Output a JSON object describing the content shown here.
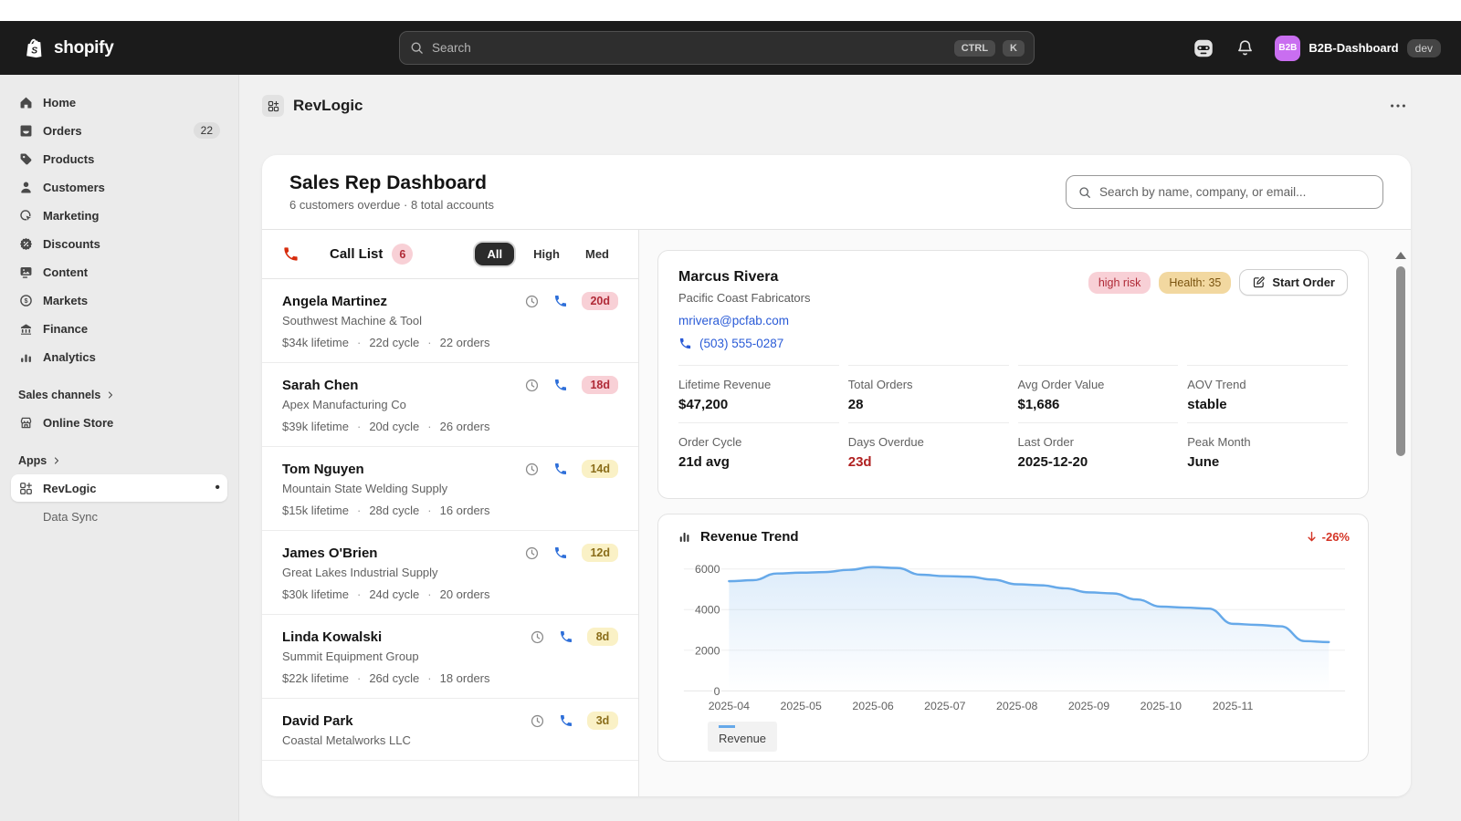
{
  "topbar": {
    "brand": "shopify",
    "search_placeholder": "Search",
    "shortcut_keys": [
      "CTRL",
      "K"
    ],
    "store_initials": "B2B",
    "store_name": "B2B-Dashboard",
    "env_badge": "dev"
  },
  "sidebar": {
    "items": [
      {
        "label": "Home",
        "icon": "home-icon"
      },
      {
        "label": "Orders",
        "icon": "orders-icon",
        "badge": "22"
      },
      {
        "label": "Products",
        "icon": "products-icon"
      },
      {
        "label": "Customers",
        "icon": "customers-icon"
      },
      {
        "label": "Marketing",
        "icon": "marketing-icon"
      },
      {
        "label": "Discounts",
        "icon": "discounts-icon"
      },
      {
        "label": "Content",
        "icon": "content-icon"
      },
      {
        "label": "Markets",
        "icon": "markets-icon"
      },
      {
        "label": "Finance",
        "icon": "finance-icon"
      },
      {
        "label": "Analytics",
        "icon": "analytics-icon"
      }
    ],
    "sales_channels_label": "Sales channels",
    "online_store_label": "Online Store",
    "apps_label": "Apps",
    "app_name": "RevLogic",
    "app_sub_item": "Data Sync"
  },
  "app_header": {
    "title": "RevLogic"
  },
  "dashboard": {
    "title": "Sales Rep Dashboard",
    "subtitle": "6 customers overdue · 8 total accounts",
    "search_placeholder": "Search by name, company, or email..."
  },
  "call_list": {
    "title": "Call List",
    "count": "6",
    "tabs": [
      {
        "label": "All",
        "active": true
      },
      {
        "label": "High",
        "active": false
      },
      {
        "label": "Med",
        "active": false
      }
    ],
    "customers": [
      {
        "name": "Angela Martinez",
        "company": "Southwest Machine & Tool",
        "lifetime": "$34k lifetime",
        "cycle": "22d cycle",
        "orders": "22 orders",
        "overdue": "20d",
        "severity": "high"
      },
      {
        "name": "Sarah Chen",
        "company": "Apex Manufacturing Co",
        "lifetime": "$39k lifetime",
        "cycle": "20d cycle",
        "orders": "26 orders",
        "overdue": "18d",
        "severity": "high"
      },
      {
        "name": "Tom Nguyen",
        "company": "Mountain State Welding Supply",
        "lifetime": "$15k lifetime",
        "cycle": "28d cycle",
        "orders": "16 orders",
        "overdue": "14d",
        "severity": "med"
      },
      {
        "name": "James O'Brien",
        "company": "Great Lakes Industrial Supply",
        "lifetime": "$30k lifetime",
        "cycle": "24d cycle",
        "orders": "20 orders",
        "overdue": "12d",
        "severity": "med"
      },
      {
        "name": "Linda Kowalski",
        "company": "Summit Equipment Group",
        "lifetime": "$22k lifetime",
        "cycle": "26d cycle",
        "orders": "18 orders",
        "overdue": "8d",
        "severity": "med"
      },
      {
        "name": "David Park",
        "company": "Coastal Metalworks LLC",
        "overdue": "3d",
        "severity": "med"
      }
    ]
  },
  "detail": {
    "name": "Marcus Rivera",
    "company": "Pacific Coast Fabricators",
    "email": "mrivera@pcfab.com",
    "phone": "(503) 555-0287",
    "risk_badge": "high risk",
    "health_badge": "Health: 35",
    "start_order_label": "Start Order",
    "stats": [
      {
        "label": "Lifetime Revenue",
        "value": "$47,200"
      },
      {
        "label": "Total Orders",
        "value": "28"
      },
      {
        "label": "Avg Order Value",
        "value": "$1,686"
      },
      {
        "label": "AOV Trend",
        "value": "stable"
      },
      {
        "label": "Order Cycle",
        "value": "21d avg"
      },
      {
        "label": "Days Overdue",
        "value": "23d",
        "alert": true
      },
      {
        "label": "Last Order",
        "value": "2025-12-20"
      },
      {
        "label": "Peak Month",
        "value": "June"
      }
    ]
  },
  "chart_data": {
    "type": "area",
    "title": "Revenue Trend",
    "trend_delta": "-26%",
    "trend_direction": "down",
    "series": [
      {
        "name": "Revenue",
        "values": [
          5400,
          5450,
          5780,
          5820,
          5850,
          5960,
          6100,
          6050,
          5720,
          5650,
          5620,
          5480,
          5250,
          5200,
          5050,
          4850,
          4800,
          4500,
          4150,
          4100,
          4050,
          3300,
          3250,
          3180,
          2450,
          2400
        ]
      }
    ],
    "x_unit": "week",
    "points_per_month": 3,
    "x_tick_labels": [
      "2025-04",
      "2025-05",
      "2025-06",
      "2025-07",
      "2025-08",
      "2025-09",
      "2025-10",
      "2025-11"
    ],
    "y_ticks": [
      0,
      2000,
      4000,
      6000
    ],
    "ylim": [
      0,
      6400
    ],
    "grid": true,
    "legend_position": "bottom-left"
  },
  "colors": {
    "topbar_bg": "#1b1b1b",
    "sidebar_bg": "#ebebeb",
    "page_bg": "#f1f1f1",
    "accent_link": "#2a5bd7",
    "risk_badge_bg": "#f8d0d6",
    "risk_badge_text": "#b02a37",
    "warn_badge_bg": "#faf1c6",
    "warn_badge_text": "#8a6d1a",
    "health_badge_bg": "#f2d8a0",
    "health_badge_text": "#7a5410",
    "danger_text": "#b02121",
    "chart_line": "#66a9e9",
    "avatar_bg": "#c96ef0"
  }
}
